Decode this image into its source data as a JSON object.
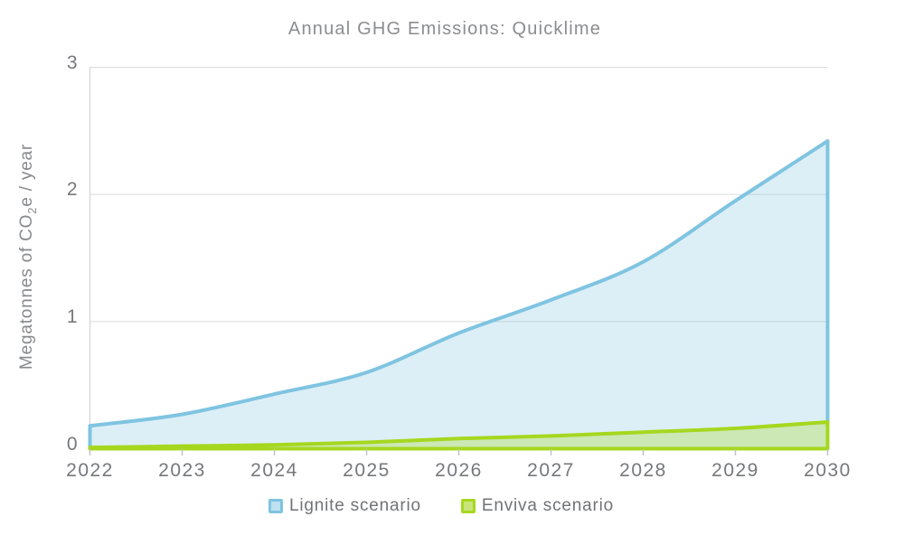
{
  "chart_data": {
    "type": "area",
    "title": "Annual GHG Emissions: Quicklime",
    "x": [
      2022,
      2023,
      2024,
      2025,
      2026,
      2027,
      2028,
      2029,
      2030
    ],
    "series": [
      {
        "name": "Lignite scenario",
        "values": [
          0.18,
          0.27,
          0.43,
          0.6,
          0.91,
          1.17,
          1.47,
          1.95,
          2.42
        ],
        "stroke": "#7fc4e1",
        "fill": "rgba(127,196,225,0.27)",
        "legend_fill": "#bfe1f0"
      },
      {
        "name": "Enviva scenario",
        "values": [
          0.01,
          0.02,
          0.03,
          0.05,
          0.08,
          0.1,
          0.13,
          0.16,
          0.21
        ],
        "stroke": "#a6d71f",
        "fill": "rgba(166,215,31,0.30)",
        "legend_fill": "#c9e57a"
      }
    ],
    "ylabel": {
      "prefix": "Megatonnes of CO",
      "sub": "2",
      "suffix": "e / year"
    },
    "ylim": [
      0,
      3
    ],
    "yticks": [
      0,
      1,
      2,
      3
    ],
    "grid": "horizontal",
    "legend_position": "bottom",
    "colors": {
      "gridline": "#d9dadb",
      "axis_line": "#cfd0d1",
      "baseline": "#c2c3c4",
      "tick_mark": "#c2c3c4",
      "title_text": "#8b8d90",
      "tick_text": "#76787b"
    }
  }
}
